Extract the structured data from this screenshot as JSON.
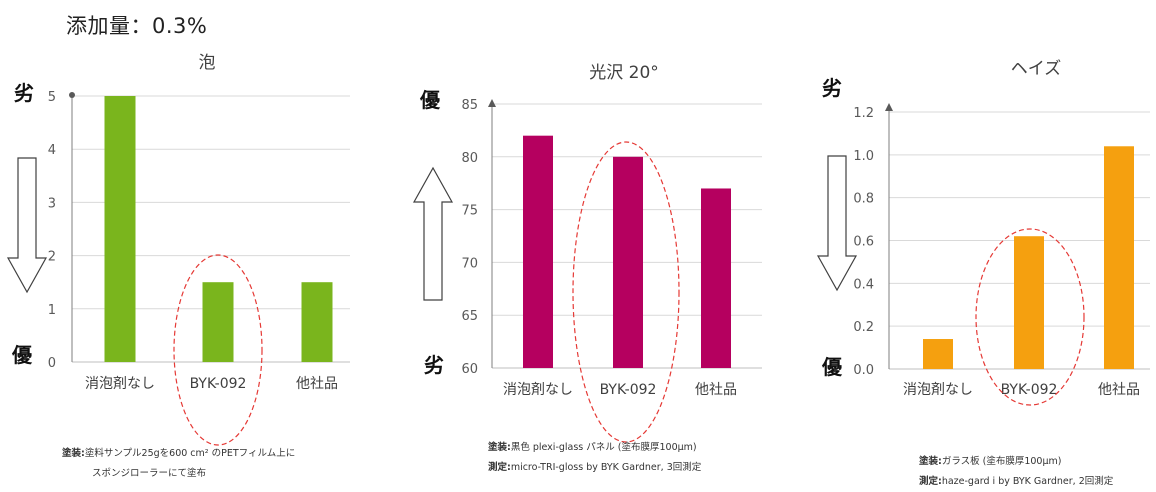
{
  "header": "添加量：0.3%",
  "colors": {
    "foam": "#7ab51d",
    "gloss": "#b5005f",
    "haze": "#f5a00f",
    "circle": "#e53935"
  },
  "chart_data": [
    {
      "type": "bar",
      "title": "泡",
      "categories": [
        "消泡剤なし",
        "BYK-092",
        "他社品"
      ],
      "values": [
        5,
        1.5,
        1.5
      ],
      "ylim": [
        0,
        5
      ],
      "yticks": [
        "0",
        "1",
        "2",
        "3",
        "4",
        "5"
      ],
      "grid": true,
      "top_word": "劣",
      "bottom_word": "優",
      "arrow": "down",
      "note_label": "塗装:",
      "note_line1": "塗料サンプル25gを600 cm² のPETフィルム上に",
      "note_line2": "スポンジローラーにて塗布"
    },
    {
      "type": "bar",
      "title": "光沢 20°",
      "categories": [
        "消泡剤なし",
        "BYK-092",
        "他社品"
      ],
      "values": [
        82,
        80,
        77
      ],
      "ylim": [
        60,
        85
      ],
      "yticks": [
        "60",
        "65",
        "70",
        "75",
        "80",
        "85"
      ],
      "grid": true,
      "top_word": "優",
      "bottom_word": "劣",
      "arrow": "up",
      "note_label1": "塗装:",
      "note_line1": "黒色 plexi-glass パネル (塗布膜厚100µm)",
      "note_label2": "測定:",
      "note_line2": "micro-TRI-gloss by BYK Gardner, 3回測定"
    },
    {
      "type": "bar",
      "title": "ヘイズ",
      "categories": [
        "消泡剤なし",
        "BYK-092",
        "他社品"
      ],
      "values": [
        0.14,
        0.62,
        1.04
      ],
      "ylim": [
        0,
        1.2
      ],
      "yticks": [
        "0.0",
        "0.2",
        "0.4",
        "0.6",
        "0.8",
        "1.0",
        "1.2"
      ],
      "grid": true,
      "top_word": "劣",
      "bottom_word": "優",
      "arrow": "down",
      "note_label1": "塗装:",
      "note_line1": "ガラス板 (塗布膜厚100µm)",
      "note_label2": "測定:",
      "note_line2": "haze-gard i by BYK Gardner, 2回測定"
    }
  ]
}
